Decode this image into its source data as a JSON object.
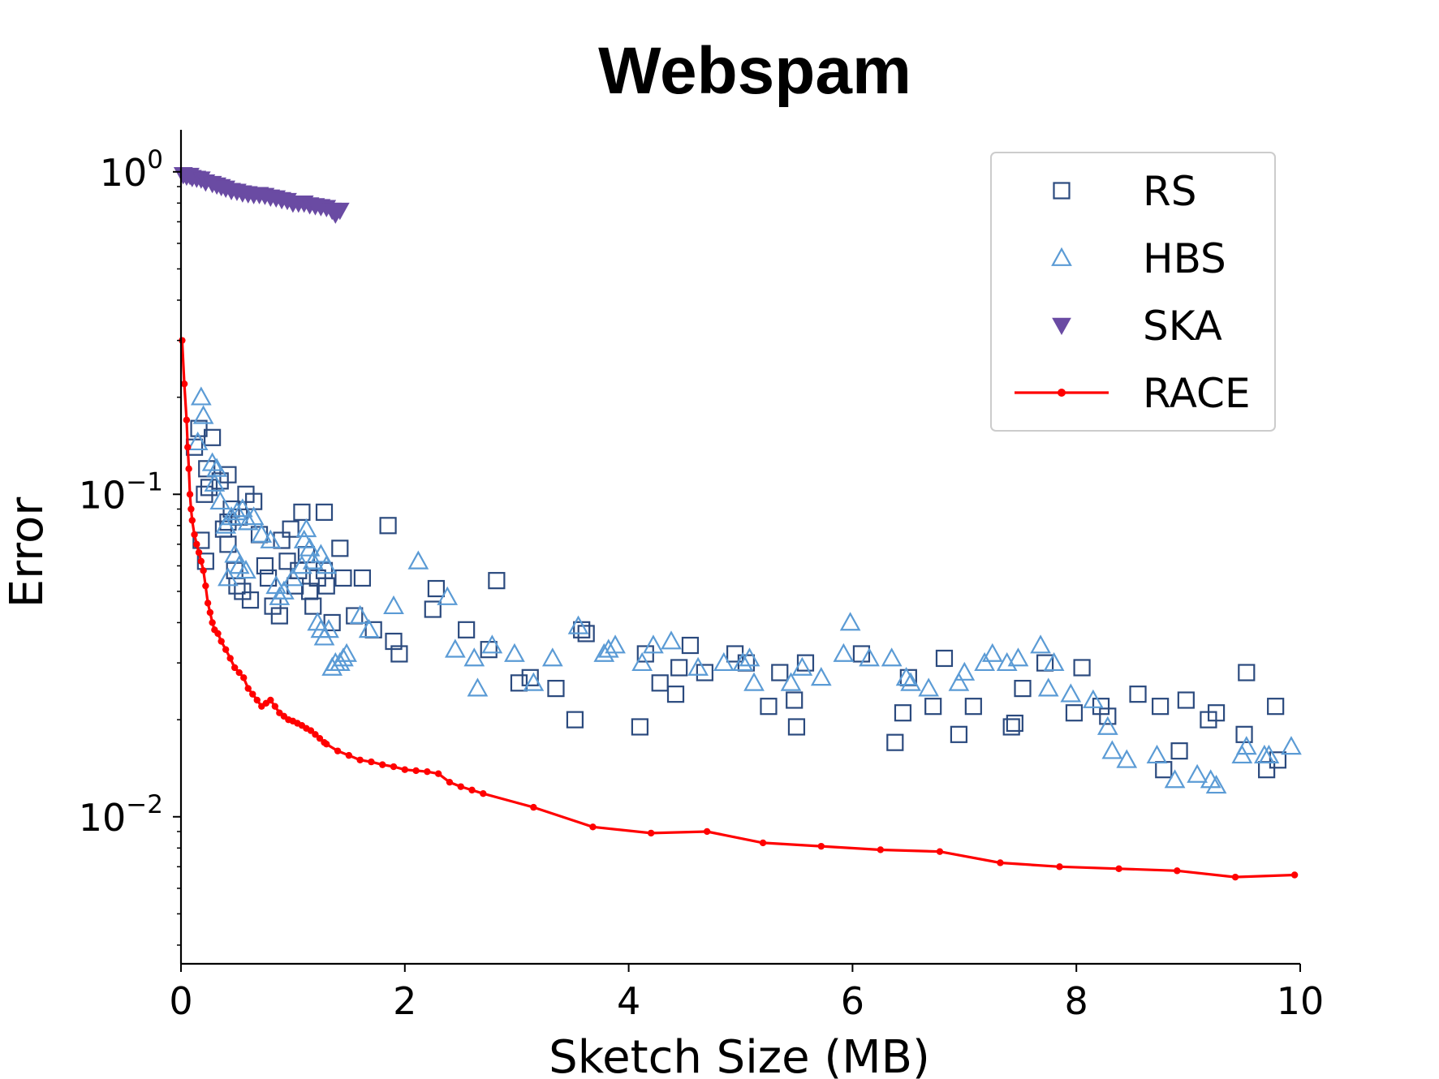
{
  "chart_data": {
    "type": "scatter",
    "title": "Webspam",
    "xlabel": "Sketch Size (MB)",
    "ylabel": "Error",
    "xlim": [
      0,
      10
    ],
    "ylim": [
      0.0035,
      1.35
    ],
    "yscale": "log",
    "grid": false,
    "legend_position": "top-right",
    "x_ticks": [
      {
        "value": 0,
        "label": "0"
      },
      {
        "value": 2,
        "label": "2"
      },
      {
        "value": 4,
        "label": "4"
      },
      {
        "value": 6,
        "label": "6"
      },
      {
        "value": 8,
        "label": "8"
      },
      {
        "value": 10,
        "label": "10"
      }
    ],
    "y_ticks": [
      {
        "value": 1,
        "base": "10",
        "exp": "0"
      },
      {
        "value": 0.1,
        "base": "10",
        "exp": "−1"
      },
      {
        "value": 0.01,
        "base": "10",
        "exp": "−2"
      }
    ],
    "series": [
      {
        "name": "RS",
        "marker": "square-open",
        "color": "#2b4a7e",
        "points": [
          [
            0.12,
            0.14
          ],
          [
            0.16,
            0.16
          ],
          [
            0.23,
            0.12
          ],
          [
            0.28,
            0.15
          ],
          [
            0.21,
            0.1
          ],
          [
            0.25,
            0.105
          ],
          [
            0.35,
            0.11
          ],
          [
            0.42,
            0.115
          ],
          [
            0.45,
            0.09
          ],
          [
            0.52,
            0.085
          ],
          [
            0.58,
            0.1
          ],
          [
            0.65,
            0.095
          ],
          [
            0.18,
            0.072
          ],
          [
            0.22,
            0.062
          ],
          [
            0.38,
            0.078
          ],
          [
            0.42,
            0.07
          ],
          [
            0.48,
            0.058
          ],
          [
            0.5,
            0.052
          ],
          [
            0.55,
            0.05
          ],
          [
            0.62,
            0.047
          ],
          [
            0.7,
            0.075
          ],
          [
            0.75,
            0.06
          ],
          [
            0.78,
            0.055
          ],
          [
            0.82,
            0.045
          ],
          [
            0.88,
            0.042
          ],
          [
            0.9,
            0.072
          ],
          [
            0.95,
            0.062
          ],
          [
            0.98,
            0.078
          ],
          [
            1.02,
            0.052
          ],
          [
            1.05,
            0.058
          ],
          [
            1.12,
            0.065
          ],
          [
            1.15,
            0.05
          ],
          [
            1.18,
            0.045
          ],
          [
            1.22,
            0.055
          ],
          [
            1.28,
            0.058
          ],
          [
            1.3,
            0.052
          ],
          [
            1.35,
            0.04
          ],
          [
            1.42,
            0.068
          ],
          [
            1.45,
            0.055
          ],
          [
            1.55,
            0.042
          ],
          [
            1.62,
            0.055
          ],
          [
            1.72,
            0.038
          ],
          [
            1.9,
            0.035
          ],
          [
            1.95,
            0.032
          ],
          [
            1.85,
            0.08
          ],
          [
            2.25,
            0.044
          ],
          [
            2.28,
            0.051
          ],
          [
            2.55,
            0.038
          ],
          [
            2.75,
            0.033
          ],
          [
            2.82,
            0.054
          ],
          [
            3.02,
            0.026
          ],
          [
            3.12,
            0.027
          ],
          [
            3.35,
            0.025
          ],
          [
            3.52,
            0.02
          ],
          [
            3.58,
            0.038
          ],
          [
            3.62,
            0.037
          ],
          [
            4.1,
            0.019
          ],
          [
            4.15,
            0.032
          ],
          [
            4.28,
            0.026
          ],
          [
            4.42,
            0.024
          ],
          [
            4.45,
            0.029
          ],
          [
            4.55,
            0.034
          ],
          [
            4.68,
            0.028
          ],
          [
            4.95,
            0.032
          ],
          [
            5.05,
            0.03
          ],
          [
            5.25,
            0.022
          ],
          [
            5.35,
            0.028
          ],
          [
            5.48,
            0.023
          ],
          [
            5.5,
            0.019
          ],
          [
            5.58,
            0.03
          ],
          [
            6.08,
            0.032
          ],
          [
            6.38,
            0.017
          ],
          [
            6.45,
            0.021
          ],
          [
            6.5,
            0.027
          ],
          [
            6.72,
            0.022
          ],
          [
            6.82,
            0.031
          ],
          [
            6.95,
            0.018
          ],
          [
            7.08,
            0.022
          ],
          [
            7.42,
            0.019
          ],
          [
            7.45,
            0.0195
          ],
          [
            7.52,
            0.025
          ],
          [
            7.72,
            0.03
          ],
          [
            7.98,
            0.021
          ],
          [
            8.05,
            0.029
          ],
          [
            8.22,
            0.022
          ],
          [
            8.28,
            0.0205
          ],
          [
            8.55,
            0.024
          ],
          [
            8.78,
            0.014
          ],
          [
            8.75,
            0.022
          ],
          [
            8.92,
            0.016
          ],
          [
            8.98,
            0.023
          ],
          [
            9.18,
            0.02
          ],
          [
            9.25,
            0.021
          ],
          [
            9.5,
            0.018
          ],
          [
            9.52,
            0.028
          ],
          [
            9.7,
            0.014
          ],
          [
            9.78,
            0.022
          ],
          [
            9.8,
            0.015
          ],
          [
            1.08,
            0.088
          ],
          [
            1.28,
            0.088
          ],
          [
            0.42,
            0.082
          ]
        ]
      },
      {
        "name": "HBS",
        "marker": "triangle-open",
        "color": "#5b9bd5",
        "points": [
          [
            0.18,
            0.2
          ],
          [
            0.2,
            0.175
          ],
          [
            0.15,
            0.145
          ],
          [
            0.28,
            0.125
          ],
          [
            0.32,
            0.12
          ],
          [
            0.3,
            0.108
          ],
          [
            0.4,
            0.08
          ],
          [
            0.45,
            0.085
          ],
          [
            0.5,
            0.088
          ],
          [
            0.55,
            0.09
          ],
          [
            0.6,
            0.082
          ],
          [
            0.65,
            0.085
          ],
          [
            0.72,
            0.075
          ],
          [
            0.8,
            0.072
          ],
          [
            0.42,
            0.055
          ],
          [
            0.48,
            0.065
          ],
          [
            0.52,
            0.06
          ],
          [
            0.58,
            0.058
          ],
          [
            0.85,
            0.052
          ],
          [
            0.88,
            0.048
          ],
          [
            0.92,
            0.05
          ],
          [
            1.0,
            0.055
          ],
          [
            1.08,
            0.06
          ],
          [
            1.1,
            0.072
          ],
          [
            1.15,
            0.068
          ],
          [
            1.18,
            0.062
          ],
          [
            1.25,
            0.065
          ],
          [
            1.3,
            0.06
          ],
          [
            1.22,
            0.04
          ],
          [
            1.25,
            0.038
          ],
          [
            1.28,
            0.036
          ],
          [
            1.32,
            0.038
          ],
          [
            1.35,
            0.029
          ],
          [
            1.38,
            0.03
          ],
          [
            1.42,
            0.03
          ],
          [
            1.45,
            0.031
          ],
          [
            1.48,
            0.032
          ],
          [
            1.6,
            0.042
          ],
          [
            1.68,
            0.038
          ],
          [
            1.9,
            0.045
          ],
          [
            2.12,
            0.062
          ],
          [
            2.38,
            0.048
          ],
          [
            2.45,
            0.033
          ],
          [
            2.62,
            0.031
          ],
          [
            2.65,
            0.025
          ],
          [
            2.78,
            0.034
          ],
          [
            2.98,
            0.032
          ],
          [
            3.15,
            0.026
          ],
          [
            3.32,
            0.031
          ],
          [
            3.55,
            0.039
          ],
          [
            3.78,
            0.032
          ],
          [
            3.82,
            0.033
          ],
          [
            3.88,
            0.034
          ],
          [
            4.12,
            0.03
          ],
          [
            4.22,
            0.034
          ],
          [
            4.38,
            0.035
          ],
          [
            4.62,
            0.029
          ],
          [
            4.85,
            0.03
          ],
          [
            5.02,
            0.03
          ],
          [
            5.08,
            0.031
          ],
          [
            5.12,
            0.026
          ],
          [
            5.45,
            0.026
          ],
          [
            5.55,
            0.029
          ],
          [
            5.72,
            0.027
          ],
          [
            5.92,
            0.032
          ],
          [
            5.98,
            0.04
          ],
          [
            6.15,
            0.031
          ],
          [
            6.35,
            0.031
          ],
          [
            6.48,
            0.027
          ],
          [
            6.52,
            0.026
          ],
          [
            6.68,
            0.025
          ],
          [
            6.95,
            0.026
          ],
          [
            7.0,
            0.028
          ],
          [
            7.18,
            0.03
          ],
          [
            7.25,
            0.032
          ],
          [
            7.38,
            0.03
          ],
          [
            7.48,
            0.031
          ],
          [
            7.68,
            0.034
          ],
          [
            7.75,
            0.025
          ],
          [
            7.8,
            0.03
          ],
          [
            7.95,
            0.024
          ],
          [
            8.15,
            0.023
          ],
          [
            8.28,
            0.019
          ],
          [
            8.32,
            0.016
          ],
          [
            8.45,
            0.015
          ],
          [
            8.72,
            0.0155
          ],
          [
            8.88,
            0.013
          ],
          [
            9.08,
            0.0135
          ],
          [
            9.2,
            0.013
          ],
          [
            9.25,
            0.0125
          ],
          [
            9.48,
            0.0155
          ],
          [
            9.52,
            0.0165
          ],
          [
            9.68,
            0.0155
          ],
          [
            9.72,
            0.0155
          ],
          [
            9.92,
            0.0165
          ],
          [
            1.12,
            0.078
          ],
          [
            0.35,
            0.095
          ]
        ]
      },
      {
        "name": "SKA",
        "marker": "triangle-down-filled",
        "color": "#6a4ba3",
        "points": [
          [
            0.02,
            0.98
          ],
          [
            0.05,
            0.97
          ],
          [
            0.08,
            0.975
          ],
          [
            0.1,
            0.96
          ],
          [
            0.14,
            0.955
          ],
          [
            0.18,
            0.95
          ],
          [
            0.22,
            0.93
          ],
          [
            0.28,
            0.92
          ],
          [
            0.32,
            0.91
          ],
          [
            0.36,
            0.9
          ],
          [
            0.4,
            0.89
          ],
          [
            0.45,
            0.875
          ],
          [
            0.5,
            0.87
          ],
          [
            0.55,
            0.86
          ],
          [
            0.6,
            0.855
          ],
          [
            0.65,
            0.85
          ],
          [
            0.7,
            0.85
          ],
          [
            0.75,
            0.845
          ],
          [
            0.8,
            0.835
          ],
          [
            0.85,
            0.83
          ],
          [
            0.9,
            0.82
          ],
          [
            0.95,
            0.815
          ],
          [
            1.0,
            0.8
          ],
          [
            1.05,
            0.8
          ],
          [
            1.1,
            0.8
          ],
          [
            1.15,
            0.79
          ],
          [
            1.2,
            0.785
          ],
          [
            1.25,
            0.78
          ],
          [
            1.3,
            0.775
          ],
          [
            1.35,
            0.76
          ],
          [
            1.38,
            0.74
          ],
          [
            1.42,
            0.76
          ]
        ]
      },
      {
        "name": "RACE",
        "marker": "line-dot",
        "color": "#ff0000",
        "points": [
          [
            0.01,
            0.3
          ],
          [
            0.03,
            0.22
          ],
          [
            0.05,
            0.17
          ],
          [
            0.06,
            0.14
          ],
          [
            0.07,
            0.12
          ],
          [
            0.08,
            0.1
          ],
          [
            0.09,
            0.09
          ],
          [
            0.1,
            0.083
          ],
          [
            0.12,
            0.075
          ],
          [
            0.14,
            0.07
          ],
          [
            0.16,
            0.066
          ],
          [
            0.18,
            0.062
          ],
          [
            0.2,
            0.058
          ],
          [
            0.22,
            0.052
          ],
          [
            0.24,
            0.046
          ],
          [
            0.26,
            0.043
          ],
          [
            0.28,
            0.04
          ],
          [
            0.3,
            0.038
          ],
          [
            0.33,
            0.037
          ],
          [
            0.36,
            0.035
          ],
          [
            0.4,
            0.033
          ],
          [
            0.44,
            0.031
          ],
          [
            0.48,
            0.029
          ],
          [
            0.52,
            0.028
          ],
          [
            0.56,
            0.027
          ],
          [
            0.6,
            0.025
          ],
          [
            0.64,
            0.024
          ],
          [
            0.68,
            0.023
          ],
          [
            0.72,
            0.022
          ],
          [
            0.76,
            0.0225
          ],
          [
            0.8,
            0.023
          ],
          [
            0.84,
            0.022
          ],
          [
            0.88,
            0.021
          ],
          [
            0.92,
            0.0205
          ],
          [
            0.96,
            0.02
          ],
          [
            1.0,
            0.0198
          ],
          [
            1.04,
            0.0195
          ],
          [
            1.08,
            0.0192
          ],
          [
            1.12,
            0.0188
          ],
          [
            1.16,
            0.0185
          ],
          [
            1.2,
            0.018
          ],
          [
            1.24,
            0.0175
          ],
          [
            1.28,
            0.017
          ],
          [
            1.3,
            0.0168
          ],
          [
            1.4,
            0.016
          ],
          [
            1.5,
            0.0155
          ],
          [
            1.6,
            0.015
          ],
          [
            1.7,
            0.0148
          ],
          [
            1.8,
            0.0145
          ],
          [
            1.9,
            0.0143
          ],
          [
            2.0,
            0.014
          ],
          [
            2.1,
            0.0139
          ],
          [
            2.2,
            0.0138
          ],
          [
            2.3,
            0.0136
          ],
          [
            2.4,
            0.0128
          ],
          [
            2.5,
            0.0124
          ],
          [
            2.6,
            0.0121
          ],
          [
            2.7,
            0.0118
          ],
          [
            3.15,
            0.0107
          ],
          [
            3.68,
            0.0093
          ],
          [
            4.2,
            0.0089
          ],
          [
            4.7,
            0.009
          ],
          [
            5.2,
            0.0083
          ],
          [
            5.72,
            0.0081
          ],
          [
            6.25,
            0.0079
          ],
          [
            6.78,
            0.0078
          ],
          [
            7.32,
            0.0072
          ],
          [
            7.85,
            0.007
          ],
          [
            8.38,
            0.0069
          ],
          [
            8.9,
            0.0068
          ],
          [
            9.42,
            0.0065
          ],
          [
            9.95,
            0.0066
          ]
        ]
      }
    ]
  }
}
